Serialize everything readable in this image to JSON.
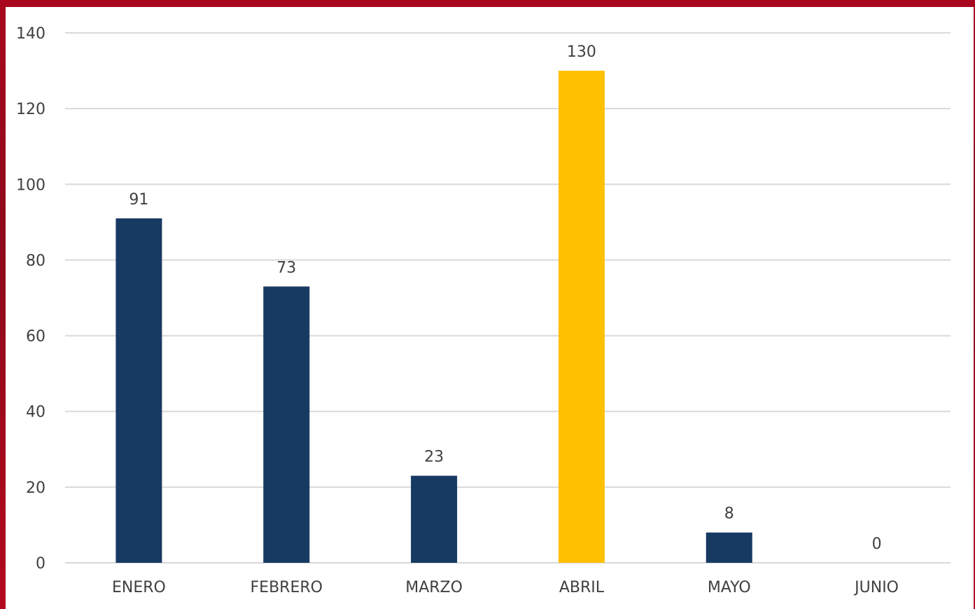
{
  "chart_data": {
    "type": "bar",
    "categories": [
      "ENERO",
      "FEBRERO",
      "MARZO",
      "ABRIL",
      "MAYO",
      "JUNIO"
    ],
    "values": [
      91,
      73,
      23,
      130,
      8,
      0
    ],
    "ylim": [
      0,
      140
    ],
    "yticks": [
      0,
      20,
      40,
      60,
      80,
      100,
      120,
      140
    ],
    "grid": true,
    "colors": {
      "default_bar": "#173a63",
      "highlight_bar": "#ffc000",
      "gridline": "#d9d9d9",
      "text": "#404040",
      "background": "#ffffff"
    },
    "highlight_category": "ABRIL"
  }
}
